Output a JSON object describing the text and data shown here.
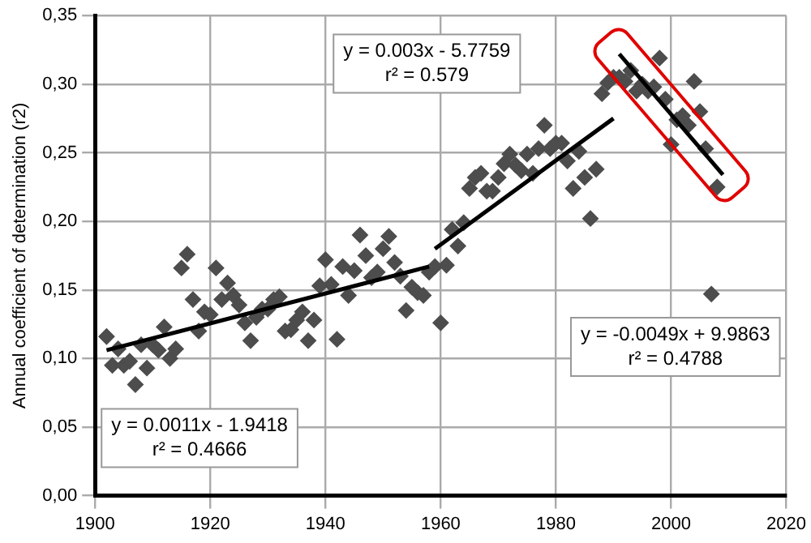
{
  "chart_data": {
    "type": "scatter",
    "ylabel": "Annual coefficient of determination (r2)",
    "xlim": [
      1900,
      2020
    ],
    "xticks": [
      1900,
      1920,
      1940,
      1960,
      1980,
      2000,
      2020
    ],
    "ylim": [
      0,
      0.35
    ],
    "yticks": [
      {
        "value": 0,
        "label": "0,00"
      },
      {
        "value": 0.05,
        "label": "0,05"
      },
      {
        "value": 0.1,
        "label": "0,10"
      },
      {
        "value": 0.15,
        "label": "0,15"
      },
      {
        "value": 0.2,
        "label": "0,20"
      },
      {
        "value": 0.25,
        "label": "0,25"
      },
      {
        "value": 0.3,
        "label": "0,30"
      },
      {
        "value": 0.35,
        "label": "0,35"
      }
    ],
    "grid": true,
    "legend": false,
    "annotations": [
      "y = 0.0011x - 1.9418\nr² = 0.4666",
      "y = 0.003x - 5.7759\nr² = 0.579",
      "y = -0.0049x + 9.9863\nr² = 0.4788"
    ],
    "series": [
      {
        "marker": "diamond",
        "color": "#4d4d4d",
        "x": [
          1902,
          1903,
          1904,
          1905,
          1906,
          1907,
          1908,
          1909,
          1910,
          1911,
          1912,
          1913,
          1914,
          1915,
          1916,
          1917,
          1918,
          1919,
          1920,
          1921,
          1922,
          1923,
          1924,
          1925,
          1926,
          1927,
          1928,
          1929,
          1930,
          1931,
          1932,
          1933,
          1934,
          1935,
          1936,
          1937,
          1938,
          1939,
          1940,
          1941,
          1942,
          1943,
          1944,
          1945,
          1946,
          1947,
          1948,
          1949,
          1950,
          1951,
          1952,
          1953,
          1954,
          1955,
          1956,
          1957,
          1958,
          1959,
          1960,
          1961,
          1962,
          1963,
          1964,
          1965,
          1966,
          1967,
          1968,
          1969,
          1970,
          1971,
          1972,
          1973,
          1974,
          1975,
          1976,
          1977,
          1978,
          1979,
          1980,
          1981,
          1982,
          1983,
          1984,
          1985,
          1986,
          1987,
          1988,
          1989,
          1990,
          1991,
          1992,
          1993,
          1994,
          1995,
          1996,
          1997,
          1998,
          1999,
          2000,
          2001,
          2002,
          2003,
          2004,
          2005,
          2006,
          2007,
          2008
        ],
        "values": [
          0.116,
          0.095,
          0.107,
          0.095,
          0.098,
          0.081,
          0.11,
          0.093,
          0.11,
          0.106,
          0.123,
          0.1,
          0.107,
          0.166,
          0.176,
          0.143,
          0.12,
          0.134,
          0.132,
          0.166,
          0.143,
          0.155,
          0.146,
          0.139,
          0.126,
          0.113,
          0.13,
          0.136,
          0.136,
          0.143,
          0.145,
          0.12,
          0.121,
          0.128,
          0.134,
          0.113,
          0.128,
          0.153,
          0.172,
          0.154,
          0.114,
          0.167,
          0.146,
          0.164,
          0.19,
          0.175,
          0.159,
          0.163,
          0.18,
          0.189,
          0.17,
          0.16,
          0.135,
          0.152,
          0.148,
          0.146,
          0.163,
          0.167,
          0.126,
          0.168,
          0.194,
          0.182,
          0.199,
          0.224,
          0.232,
          0.235,
          0.222,
          0.222,
          0.232,
          0.242,
          0.249,
          0.241,
          0.237,
          0.249,
          0.235,
          0.253,
          0.27,
          0.253,
          0.257,
          0.257,
          0.244,
          0.224,
          0.251,
          0.232,
          0.202,
          0.238,
          0.293,
          0.301,
          0.305,
          0.305,
          0.302,
          0.31,
          0.295,
          0.3,
          0.295,
          0.298,
          0.319,
          0.289,
          0.256,
          0.274,
          0.277,
          0.27,
          0.302,
          0.28,
          0.253,
          0.147,
          0.225
        ]
      },
      {
        "type": "line",
        "marker": "none",
        "color": "#000000",
        "x": [
          1902,
          1958
        ],
        "values": [
          0.106,
          0.167
        ]
      },
      {
        "type": "line",
        "marker": "none",
        "color": "#000000",
        "x": [
          1959,
          1990
        ],
        "values": [
          0.18,
          0.275
        ]
      },
      {
        "type": "line",
        "marker": "none",
        "color": "#000000",
        "x": [
          1991,
          2009
        ],
        "values": [
          0.322,
          0.234
        ]
      }
    ]
  }
}
